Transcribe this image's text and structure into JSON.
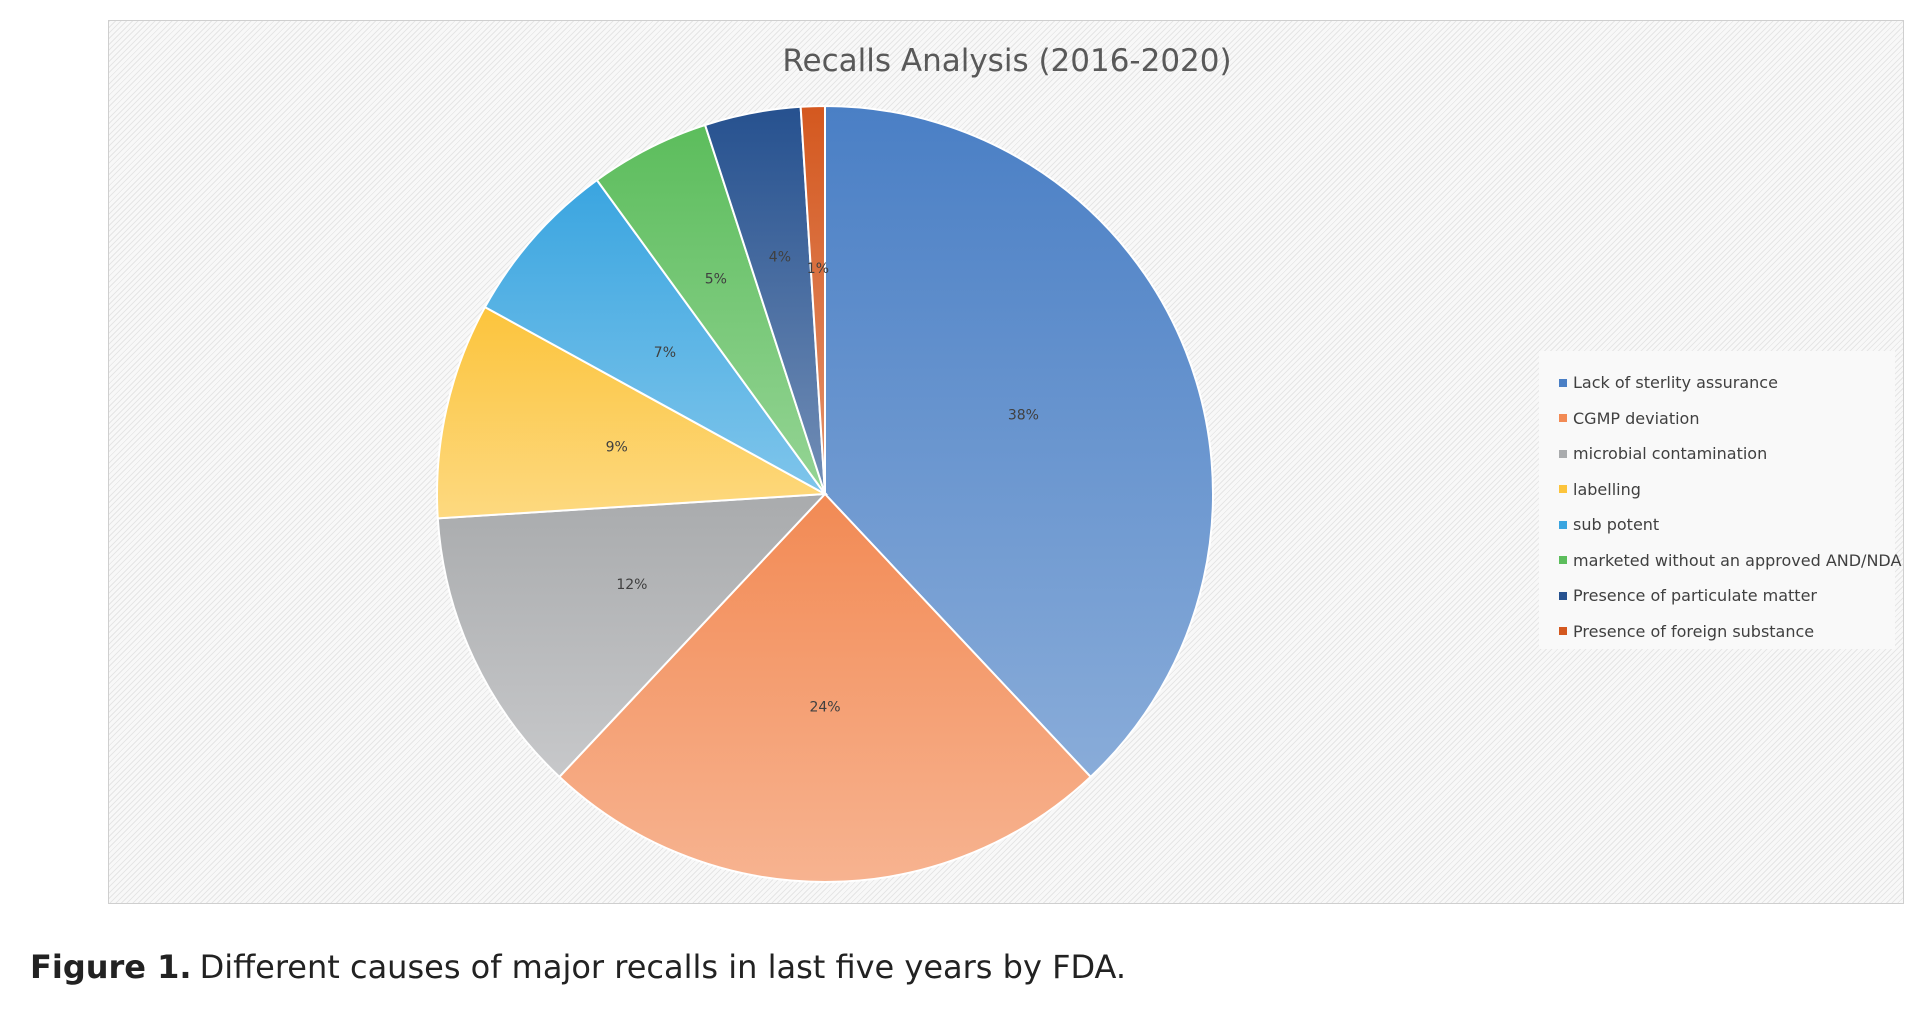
{
  "chart_data": {
    "type": "pie",
    "title": "Recalls Analysis (2016-2020)",
    "legend_position": "right",
    "slices": [
      {
        "label": "Lack of sterlity assurance",
        "value": 38,
        "display": "38%",
        "color": "#4a7fc5"
      },
      {
        "label": "CGMP deviation",
        "value": 24,
        "display": "24%",
        "color": "#f28a54"
      },
      {
        "label": "microbial contamination",
        "value": 12,
        "display": "12%",
        "color": "#a9abad"
      },
      {
        "label": "labelling",
        "value": 9,
        "display": "9%",
        "color": "#fcc43c"
      },
      {
        "label": "sub potent",
        "value": 7,
        "display": "7%",
        "color": "#3aa5e0"
      },
      {
        "label": "marketed without an approved AND/NDA",
        "value": 5,
        "display": "5%",
        "color": "#5cbd5c"
      },
      {
        "label": "Presence of particulate matter",
        "value": 4,
        "display": "4%",
        "color": "#26518f"
      },
      {
        "label": "Presence of foreign substance",
        "value": 1,
        "display": "1%",
        "color": "#d4581f"
      }
    ]
  },
  "caption": {
    "label": "Figure 1.",
    "text": "Different causes of major recalls in last five years by FDA."
  }
}
